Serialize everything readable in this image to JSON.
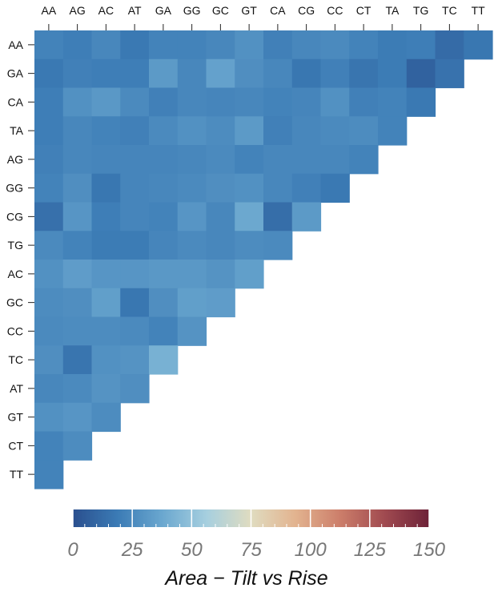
{
  "chart_data": {
    "type": "heatmap",
    "title": "",
    "columns": [
      "AA",
      "AG",
      "AC",
      "AT",
      "GA",
      "GG",
      "GC",
      "GT",
      "CA",
      "CG",
      "CC",
      "CT",
      "TA",
      "TG",
      "TC",
      "TT"
    ],
    "rows": [
      "AA",
      "GA",
      "CA",
      "TA",
      "AG",
      "GG",
      "CG",
      "TG",
      "AC",
      "GC",
      "CC",
      "TC",
      "AT",
      "GT",
      "CT",
      "TT"
    ],
    "values": [
      [
        22,
        20,
        24,
        18,
        22,
        22,
        24,
        28,
        21,
        24,
        25,
        22,
        19,
        20,
        12,
        17
      ],
      [
        18,
        21,
        20,
        20,
        32,
        24,
        35,
        27,
        24,
        17,
        21,
        16,
        19,
        8,
        15
      ],
      [
        20,
        28,
        31,
        25,
        21,
        24,
        23,
        24,
        22,
        23,
        28,
        21,
        22,
        18
      ],
      [
        20,
        24,
        22,
        21,
        25,
        28,
        26,
        32,
        21,
        24,
        25,
        26,
        22
      ],
      [
        21,
        24,
        23,
        23,
        23,
        24,
        25,
        22,
        24,
        24,
        24,
        22
      ],
      [
        22,
        27,
        17,
        23,
        24,
        25,
        27,
        28,
        24,
        21,
        18
      ],
      [
        14,
        30,
        20,
        23,
        22,
        30,
        24,
        38,
        13,
        32
      ],
      [
        25,
        22,
        19,
        19,
        23,
        25,
        24,
        26,
        25
      ],
      [
        28,
        33,
        30,
        30,
        31,
        31,
        29,
        34
      ],
      [
        26,
        27,
        34,
        17,
        27,
        34,
        33
      ],
      [
        25,
        26,
        26,
        25,
        22,
        29
      ],
      [
        27,
        16,
        28,
        29,
        42
      ],
      [
        24,
        25,
        29,
        27
      ],
      [
        28,
        30,
        26
      ],
      [
        22,
        26
      ],
      [
        22
      ]
    ],
    "colorbar": {
      "title": "Area − Tilt vs Rise",
      "min": 0,
      "max": 150,
      "ticks": [
        "0",
        "25",
        "50",
        "75",
        "100",
        "125",
        "150"
      ],
      "colormap": "RdYlBu_r",
      "stops": [
        "#2a4f8e",
        "#3b7bb5",
        "#6aa7cf",
        "#a6cfdf",
        "#e0dcc0",
        "#e2b38f",
        "#cc7e6a",
        "#a04a50",
        "#6d2238"
      ]
    },
    "layout": "lower-triangular"
  }
}
